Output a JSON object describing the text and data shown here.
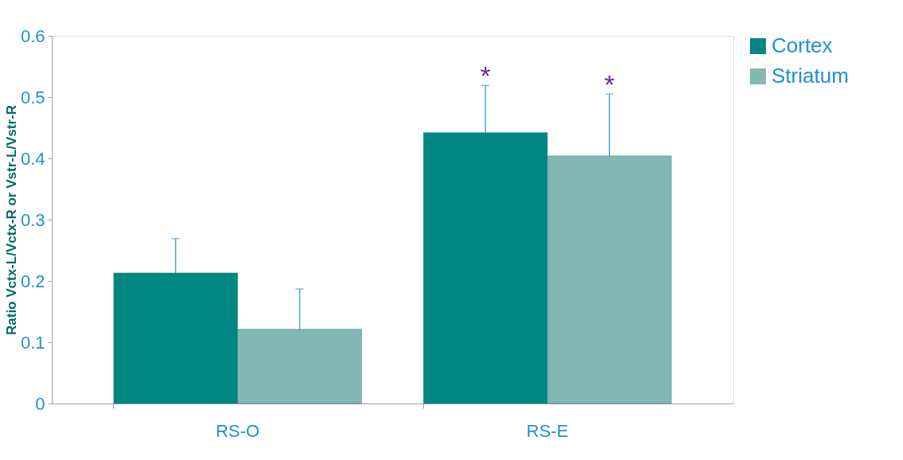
{
  "chart_data": {
    "type": "bar",
    "ylabel": "Ratio Vctx-L/Vctx-R or Vstr-L/Vstr-R",
    "categories": [
      "RS-O",
      "RS-E"
    ],
    "series": [
      {
        "name": "Cortex",
        "color": "#008784",
        "values": [
          0.213,
          0.442
        ],
        "errors": [
          [
            0.213,
            0.269
          ],
          [
            0.442,
            0.519
          ]
        ]
      },
      {
        "name": "Striatum",
        "color": "#84b8b5",
        "values": [
          0.121,
          0.404
        ],
        "errors": [
          [
            0.121,
            0.187
          ],
          [
            0.404,
            0.505
          ]
        ]
      }
    ],
    "ylim": [
      0,
      0.6
    ],
    "yticks": [
      0,
      0.1,
      0.2,
      0.3,
      0.4,
      0.5,
      0.6
    ],
    "grid": false,
    "legend": "right",
    "annotations": [
      "*",
      "*"
    ]
  }
}
